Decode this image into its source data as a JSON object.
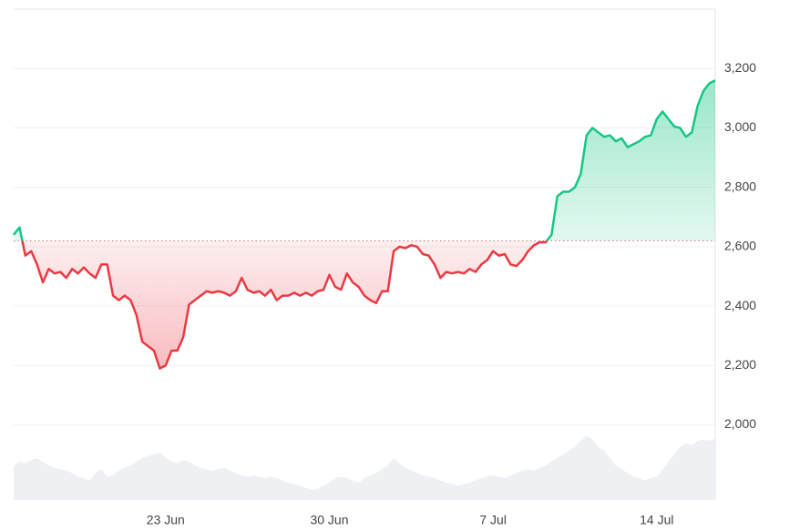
{
  "chart_data": {
    "type": "line",
    "categories": [
      null,
      null,
      null,
      null,
      null,
      null,
      null,
      null,
      null,
      null,
      null,
      null,
      null,
      null,
      null,
      null,
      null,
      null,
      null,
      null,
      null,
      null,
      null,
      null,
      null,
      null,
      "23 Jun",
      null,
      null,
      null,
      null,
      null,
      null,
      null,
      null,
      null,
      null,
      null,
      null,
      null,
      null,
      null,
      null,
      null,
      null,
      null,
      null,
      null,
      null,
      null,
      null,
      null,
      null,
      null,
      "30 Jun",
      null,
      null,
      null,
      null,
      null,
      null,
      null,
      null,
      null,
      null,
      null,
      null,
      null,
      null,
      null,
      null,
      null,
      null,
      null,
      null,
      null,
      null,
      null,
      null,
      null,
      null,
      null,
      "7 Jul",
      null,
      null,
      null,
      null,
      null,
      null,
      null,
      null,
      null,
      null,
      null,
      null,
      null,
      null,
      null,
      null,
      null,
      null,
      null,
      null,
      null,
      null,
      null,
      null,
      null,
      null,
      null,
      "14 Jul",
      null,
      null,
      null,
      null,
      null,
      null,
      null,
      null,
      null,
      null
    ],
    "series": [
      {
        "color_up": "#16c784",
        "color_down": "#ea3943",
        "values": [
          2640,
          2665,
          2570,
          2585,
          2540,
          2480,
          2525,
          2510,
          2515,
          2495,
          2525,
          2510,
          2530,
          2510,
          2495,
          2540,
          2540,
          2435,
          2420,
          2435,
          2420,
          2370,
          2280,
          2265,
          2250,
          2190,
          2200,
          2250,
          2250,
          2295,
          2405,
          2420,
          2435,
          2450,
          2445,
          2450,
          2445,
          2435,
          2450,
          2495,
          2455,
          2445,
          2450,
          2435,
          2455,
          2420,
          2435,
          2435,
          2445,
          2435,
          2445,
          2435,
          2450,
          2455,
          2505,
          2465,
          2455,
          2510,
          2480,
          2465,
          2435,
          2420,
          2410,
          2450,
          2450,
          2585,
          2600,
          2595,
          2605,
          2600,
          2575,
          2570,
          2540,
          2495,
          2515,
          2510,
          2515,
          2510,
          2525,
          2515,
          2540,
          2555,
          2585,
          2570,
          2575,
          2540,
          2535,
          2555,
          2585,
          2605,
          2615,
          2615,
          2640,
          2770,
          2785,
          2785,
          2800,
          2845,
          2975,
          3000,
          2985,
          2970,
          2975,
          2955,
          2965,
          2935,
          2945,
          2955,
          2970,
          2975,
          3030,
          3055,
          3030,
          3005,
          3000,
          2970,
          2985,
          3075,
          3125,
          3150,
          3160
        ]
      },
      {
        "axis": "y2",
        "color": "#eef0f3",
        "values": [
          45,
          50,
          48,
          52,
          55,
          50,
          45,
          42,
          40,
          38,
          35,
          30,
          28,
          25,
          35,
          40,
          30,
          32,
          38,
          42,
          45,
          50,
          55,
          58,
          60,
          62,
          55,
          50,
          48,
          52,
          50,
          45,
          42,
          40,
          38,
          40,
          42,
          38,
          35,
          32,
          30,
          32,
          30,
          28,
          30,
          28,
          25,
          22,
          20,
          18,
          15,
          12,
          14,
          18,
          22,
          28,
          30,
          28,
          25,
          22,
          28,
          32,
          35,
          40,
          45,
          55,
          48,
          42,
          38,
          35,
          32,
          30,
          28,
          25,
          22,
          20,
          18,
          20,
          22,
          25,
          28,
          30,
          32,
          30,
          28,
          32,
          35,
          38,
          40,
          38,
          42,
          45,
          50,
          55,
          60,
          65,
          70,
          78,
          85,
          80,
          70,
          65,
          55,
          45,
          40,
          35,
          30,
          28,
          25,
          28,
          30,
          40,
          50,
          60,
          70,
          75,
          72,
          78,
          80,
          78,
          82
        ]
      }
    ],
    "baseline": 2620,
    "ylim": [
      1750,
      3400
    ],
    "yticks": [
      {
        "value": 2000,
        "label": "2,000"
      },
      {
        "value": 2200,
        "label": "2,200"
      },
      {
        "value": 2400,
        "label": "2,400"
      },
      {
        "value": 2600,
        "label": "2,600"
      },
      {
        "value": 2800,
        "label": "2,800"
      },
      {
        "value": 3000,
        "label": "3,000"
      },
      {
        "value": 3200,
        "label": "3,200"
      }
    ],
    "y2lim": [
      0,
      100
    ],
    "grid": true
  }
}
